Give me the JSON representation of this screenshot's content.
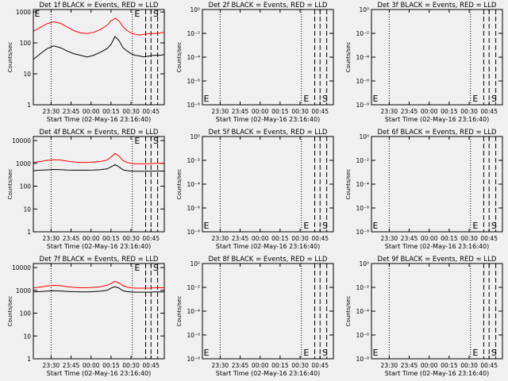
{
  "chart_data": [
    {
      "type": "line",
      "panel": "det1f",
      "title": "Det 1f BLACK = Events, RED = LLD",
      "xlabel": "Start Time (02-May-16 23:16:40)",
      "ylabel": "Counts/sec",
      "yscale": "log",
      "x_time_range": [
        "23:16:40",
        "00:55:00"
      ],
      "xtick_labels": [
        "23:30",
        "23:45",
        "00:00",
        "00:15",
        "00:30",
        "00:45"
      ],
      "ytick_labels": [
        "1",
        "10",
        "100",
        "1000"
      ],
      "ylim": [
        1,
        1200
      ],
      "grid": false,
      "series": [
        {
          "color": "#ff0000",
          "x": [
            "23:17",
            "23:22",
            "23:27",
            "23:32",
            "23:37",
            "23:42",
            "23:47",
            "23:52",
            "23:57",
            "00:02",
            "00:07",
            "00:12",
            "00:15",
            "00:18",
            "00:21",
            "00:24",
            "00:27",
            "00:30",
            "00:33",
            "00:36",
            "00:40",
            "00:44",
            "00:48",
            "00:52",
            "00:55"
          ],
          "values": [
            240,
            320,
            420,
            480,
            430,
            330,
            250,
            210,
            200,
            220,
            270,
            370,
            520,
            620,
            520,
            330,
            250,
            210,
            190,
            180,
            190,
            200,
            200,
            210,
            220
          ]
        },
        {
          "color": "#000000",
          "x": [
            "23:17",
            "23:22",
            "23:27",
            "23:32",
            "23:37",
            "23:42",
            "23:47",
            "23:52",
            "23:57",
            "00:02",
            "00:07",
            "00:12",
            "00:15",
            "00:18",
            "00:21",
            "00:24",
            "00:27",
            "00:30",
            "00:33",
            "00:36",
            "00:40",
            "00:44",
            "00:48",
            "00:52",
            "00:55"
          ],
          "values": [
            30,
            45,
            65,
            80,
            70,
            55,
            45,
            40,
            35,
            40,
            50,
            65,
            90,
            160,
            120,
            70,
            55,
            45,
            40,
            38,
            35,
            38,
            40,
            40,
            42
          ]
        }
      ],
      "dotted_markers": [
        "23:30",
        "00:31"
      ],
      "dashed_markers": [
        "00:41",
        "00:45",
        "00:50"
      ],
      "marker_letters": [
        {
          "text": "E",
          "x": "23:17"
        },
        {
          "text": "E",
          "x": "00:32"
        },
        {
          "text": "S",
          "x": "00:46"
        }
      ]
    },
    {
      "type": "line",
      "panel": "det2f",
      "title": "Det 2f BLACK = Events, RED = LLD",
      "xlabel": "Start Time (02-May-16 23:16:40)",
      "ylabel": "Counts/sec",
      "yscale": "log",
      "x_time_range": [
        "23:16:40",
        "00:55:00"
      ],
      "xtick_labels": [
        "23:30",
        "23:45",
        "00:00",
        "00:15",
        "00:30",
        "00:45"
      ],
      "ytick_labels": [
        "10⁻⁸",
        "10⁻⁶",
        "10⁻⁴",
        "10⁻²",
        "10⁰"
      ],
      "ylim": [
        1,
        1e-08
      ],
      "grid": false,
      "series": [],
      "dotted_markers": [
        "23:30",
        "00:31"
      ],
      "dashed_markers": [
        "00:41",
        "00:45",
        "00:50"
      ],
      "marker_letters": [
        {
          "text": "E",
          "x": "23:17"
        },
        {
          "text": "E",
          "x": "00:32"
        },
        {
          "text": "S",
          "x": "00:46"
        }
      ]
    },
    {
      "type": "line",
      "panel": "det3f",
      "title": "Det 3f BLACK = Events, RED = LLD",
      "xlabel": "Start Time (02-May-16 23:16:40)",
      "ylabel": "Counts/sec",
      "yscale": "log",
      "x_time_range": [
        "23:16:40",
        "00:55:00"
      ],
      "xtick_labels": [
        "23:30",
        "23:45",
        "00:00",
        "00:15",
        "00:30",
        "00:45"
      ],
      "ytick_labels": [
        "10⁻⁸",
        "10⁻⁶",
        "10⁻⁴",
        "10⁻²",
        "10⁰"
      ],
      "ylim": [
        1,
        1e-08
      ],
      "grid": false,
      "series": [],
      "dotted_markers": [
        "23:30",
        "00:31"
      ],
      "dashed_markers": [
        "00:41",
        "00:45",
        "00:50"
      ],
      "marker_letters": [
        {
          "text": "E",
          "x": "23:17"
        },
        {
          "text": "E",
          "x": "00:32"
        },
        {
          "text": "S",
          "x": "00:46"
        }
      ]
    },
    {
      "type": "line",
      "panel": "det4f",
      "title": "Det 4f BLACK = Events, RED = LLD",
      "xlabel": "Start Time (02-May-16 23:16:40)",
      "ylabel": "Counts/sec",
      "yscale": "log",
      "x_time_range": [
        "23:16:40",
        "00:55:00"
      ],
      "xtick_labels": [
        "23:30",
        "23:45",
        "00:00",
        "00:15",
        "00:30",
        "00:45"
      ],
      "ytick_labels": [
        "1",
        "10",
        "100",
        "1000",
        "10000"
      ],
      "ylim": [
        1,
        15000
      ],
      "grid": false,
      "series": [
        {
          "color": "#ff0000",
          "x": [
            "23:17",
            "23:22",
            "23:27",
            "23:32",
            "23:37",
            "23:42",
            "23:47",
            "23:52",
            "23:57",
            "00:02",
            "00:07",
            "00:12",
            "00:15",
            "00:18",
            "00:21",
            "00:24",
            "00:27",
            "00:30",
            "00:33",
            "00:36",
            "00:40",
            "00:44",
            "00:48",
            "00:52",
            "00:55"
          ],
          "values": [
            1100,
            1200,
            1350,
            1450,
            1400,
            1250,
            1150,
            1100,
            1100,
            1150,
            1200,
            1400,
            1900,
            2700,
            2100,
            1300,
            1100,
            1000,
            950,
            950,
            950,
            950,
            1000,
            1000,
            1000
          ]
        },
        {
          "color": "#000000",
          "x": [
            "23:17",
            "23:22",
            "23:27",
            "23:32",
            "23:37",
            "23:42",
            "23:47",
            "23:52",
            "23:57",
            "00:02",
            "00:07",
            "00:12",
            "00:15",
            "00:18",
            "00:21",
            "00:24",
            "00:27",
            "00:30",
            "00:33",
            "00:36",
            "00:40",
            "00:44",
            "00:48",
            "00:52",
            "00:55"
          ],
          "values": [
            480,
            500,
            520,
            540,
            530,
            510,
            500,
            500,
            500,
            510,
            530,
            570,
            700,
            880,
            700,
            520,
            480,
            460,
            450,
            450,
            450,
            450,
            460,
            460,
            460
          ]
        }
      ],
      "dotted_markers": [
        "23:30",
        "00:31"
      ],
      "dashed_markers": [
        "00:41",
        "00:45",
        "00:50"
      ],
      "marker_letters": [
        {
          "text": "E",
          "x": "00:32"
        },
        {
          "text": "S",
          "x": "00:46"
        }
      ]
    },
    {
      "type": "line",
      "panel": "det5f",
      "title": "Det 5f BLACK = Events, RED = LLD",
      "xlabel": "Start Time (02-May-16 23:16:40)",
      "ylabel": "Counts/sec",
      "yscale": "log",
      "x_time_range": [
        "23:16:40",
        "00:55:00"
      ],
      "xtick_labels": [
        "23:30",
        "23:45",
        "00:00",
        "00:15",
        "00:30",
        "00:45"
      ],
      "ytick_labels": [
        "10⁻⁸",
        "10⁻⁶",
        "10⁻⁴",
        "10⁻²",
        "10⁰"
      ],
      "ylim": [
        1,
        1e-08
      ],
      "grid": false,
      "series": [],
      "dotted_markers": [
        "23:30",
        "00:31"
      ],
      "dashed_markers": [
        "00:41",
        "00:45",
        "00:50"
      ],
      "marker_letters": [
        {
          "text": "E",
          "x": "23:17"
        },
        {
          "text": "E",
          "x": "00:32"
        },
        {
          "text": "S",
          "x": "00:46"
        }
      ]
    },
    {
      "type": "line",
      "panel": "det6f",
      "title": "Det 6f BLACK = Events, RED = LLD",
      "xlabel": "Start Time (02-May-16 23:16:40)",
      "ylabel": "Counts/sec",
      "yscale": "log",
      "x_time_range": [
        "23:16:40",
        "00:55:00"
      ],
      "xtick_labels": [
        "23:30",
        "23:45",
        "00:00",
        "00:15",
        "00:30",
        "00:45"
      ],
      "ytick_labels": [
        "10⁻⁸",
        "10⁻⁶",
        "10⁻⁴",
        "10⁻²",
        "10⁰"
      ],
      "ylim": [
        1,
        1e-08
      ],
      "grid": false,
      "series": [],
      "dotted_markers": [
        "23:30",
        "00:31"
      ],
      "dashed_markers": [
        "00:41",
        "00:45",
        "00:50"
      ],
      "marker_letters": [
        {
          "text": "E",
          "x": "23:17"
        },
        {
          "text": "E",
          "x": "00:32"
        },
        {
          "text": "S",
          "x": "00:46"
        }
      ]
    },
    {
      "type": "line",
      "panel": "det7f",
      "title": "Det 7f BLACK = Events, RED = LLD",
      "xlabel": "Start Time (02-May-16 23:16:40)",
      "ylabel": "Counts/sec",
      "yscale": "log",
      "x_time_range": [
        "23:16:40",
        "00:55:00"
      ],
      "xtick_labels": [
        "23:30",
        "23:45",
        "00:00",
        "00:15",
        "00:30",
        "00:45"
      ],
      "ytick_labels": [
        "1",
        "10",
        "100",
        "1000",
        "10000"
      ],
      "ylim": [
        1,
        15000
      ],
      "grid": false,
      "series": [
        {
          "color": "#ff0000",
          "x": [
            "23:17",
            "23:22",
            "23:27",
            "23:32",
            "23:37",
            "23:42",
            "23:47",
            "23:52",
            "23:57",
            "00:02",
            "00:07",
            "00:12",
            "00:15",
            "00:18",
            "00:21",
            "00:24",
            "00:27",
            "00:30",
            "00:33",
            "00:36",
            "00:40",
            "00:44",
            "00:48",
            "00:52",
            "00:55"
          ],
          "values": [
            1300,
            1400,
            1550,
            1650,
            1600,
            1450,
            1350,
            1300,
            1300,
            1350,
            1450,
            1650,
            2000,
            2500,
            2100,
            1600,
            1400,
            1300,
            1250,
            1250,
            1250,
            1250,
            1300,
            1300,
            1300
          ]
        },
        {
          "color": "#000000",
          "x": [
            "23:17",
            "23:22",
            "23:27",
            "23:32",
            "23:37",
            "23:42",
            "23:47",
            "23:52",
            "23:57",
            "00:02",
            "00:07",
            "00:12",
            "00:15",
            "00:18",
            "00:21",
            "00:24",
            "00:27",
            "00:30",
            "00:33",
            "00:36",
            "00:40",
            "00:44",
            "00:48",
            "00:52",
            "00:55"
          ],
          "values": [
            850,
            880,
            920,
            960,
            940,
            900,
            870,
            860,
            860,
            880,
            920,
            1000,
            1250,
            1450,
            1250,
            950,
            880,
            850,
            830,
            830,
            830,
            830,
            850,
            850,
            850
          ]
        }
      ],
      "dotted_markers": [
        "23:30",
        "00:31"
      ],
      "dashed_markers": [
        "00:41",
        "00:45",
        "00:50"
      ],
      "marker_letters": [
        {
          "text": "E",
          "x": "00:32"
        },
        {
          "text": "S",
          "x": "00:46"
        }
      ]
    },
    {
      "type": "line",
      "panel": "det8f",
      "title": "Det 8f BLACK = Events, RED = LLD",
      "xlabel": "Start Time (02-May-16 23:16:40)",
      "ylabel": "Counts/sec",
      "yscale": "log",
      "x_time_range": [
        "23:16:40",
        "00:55:00"
      ],
      "xtick_labels": [
        "23:30",
        "23:45",
        "00:00",
        "00:15",
        "00:30",
        "00:45"
      ],
      "ytick_labels": [
        "10⁻⁸",
        "10⁻⁶",
        "10⁻⁴",
        "10⁻²",
        "10⁰"
      ],
      "ylim": [
        1,
        1e-08
      ],
      "grid": false,
      "series": [],
      "dotted_markers": [
        "23:30",
        "00:31"
      ],
      "dashed_markers": [
        "00:41",
        "00:45",
        "00:50"
      ],
      "marker_letters": [
        {
          "text": "E",
          "x": "23:17"
        },
        {
          "text": "E",
          "x": "00:32"
        },
        {
          "text": "S",
          "x": "00:46"
        }
      ]
    },
    {
      "type": "line",
      "panel": "det9f",
      "title": "Det 9f BLACK = Events, RED = LLD",
      "xlabel": "Start Time (02-May-16 23:16:40)",
      "ylabel": "Counts/sec",
      "yscale": "log",
      "x_time_range": [
        "23:16:40",
        "00:55:00"
      ],
      "xtick_labels": [
        "23:30",
        "23:45",
        "00:00",
        "00:15",
        "00:30",
        "00:45"
      ],
      "ytick_labels": [
        "10⁻⁸",
        "10⁻⁶",
        "10⁻⁴",
        "10⁻²",
        "10⁰"
      ],
      "ylim": [
        1,
        1e-08
      ],
      "grid": false,
      "series": [],
      "dotted_markers": [
        "23:30",
        "00:31"
      ],
      "dashed_markers": [
        "00:41",
        "00:45",
        "00:50"
      ],
      "marker_letters": [
        {
          "text": "E",
          "x": "23:17"
        },
        {
          "text": "E",
          "x": "00:32"
        },
        {
          "text": "S",
          "x": "00:46"
        }
      ]
    }
  ]
}
